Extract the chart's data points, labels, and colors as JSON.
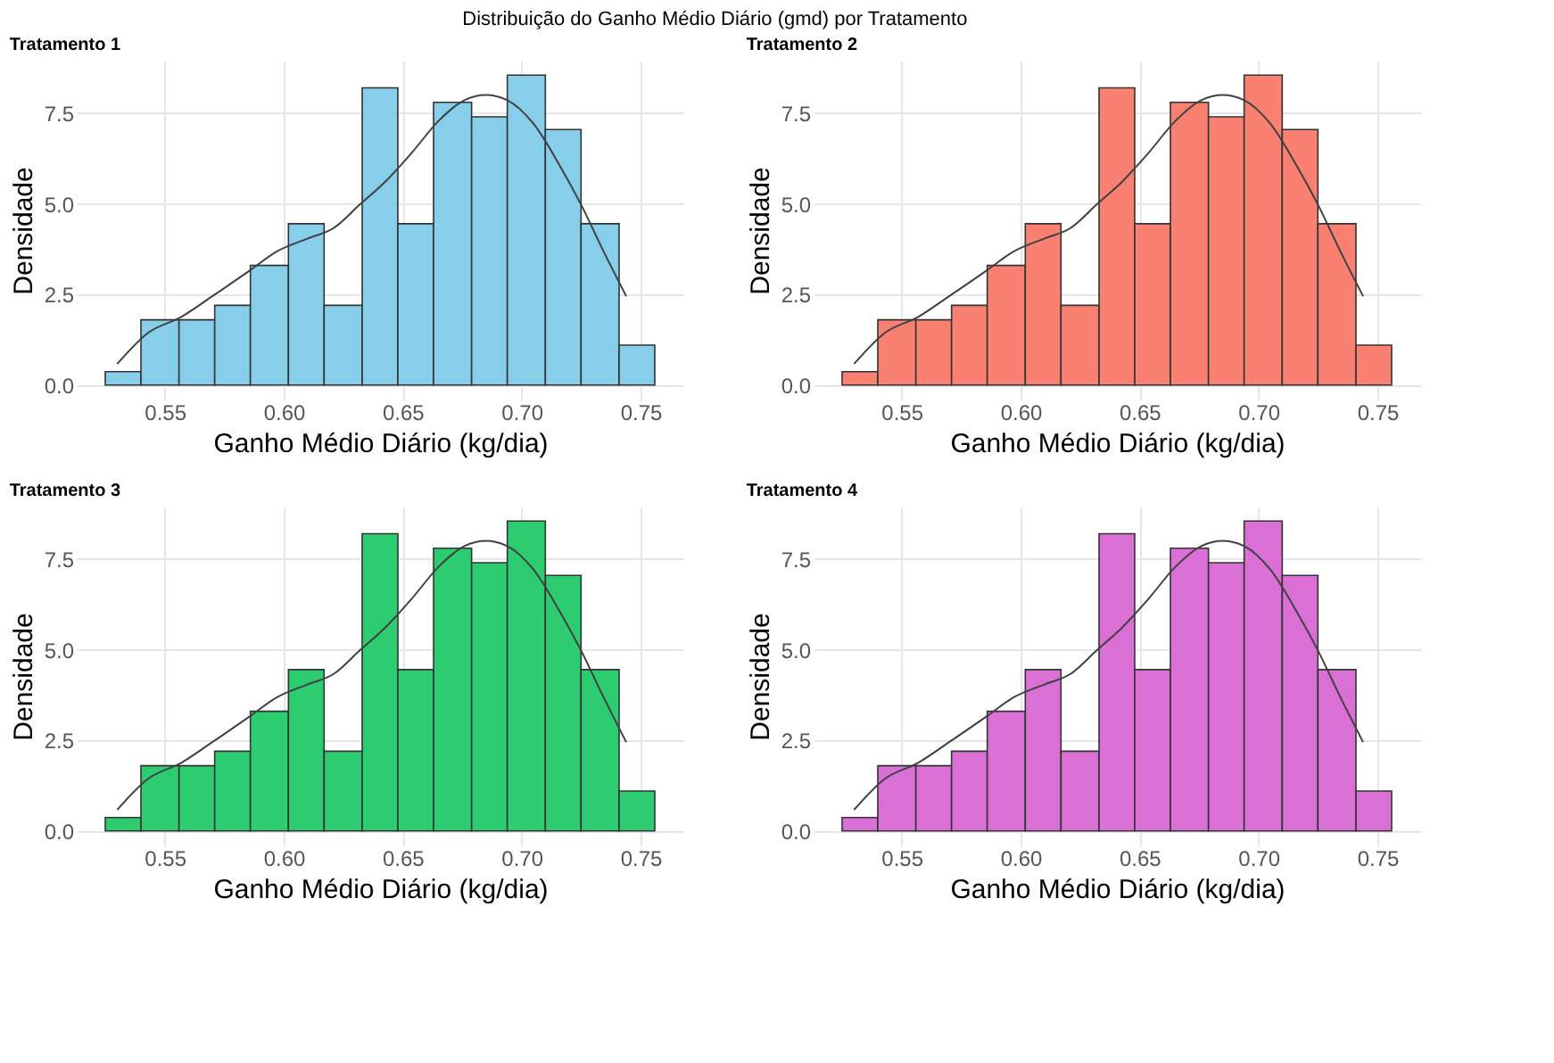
{
  "chart_data": [
    {
      "type": "histogram",
      "title": "Tratamento 1",
      "annotations": [
        "Distribuição do Ganho Médio Diário (gmd) por Tratamento"
      ],
      "xlabel": "Ganho Médio Diário (kg/dia)",
      "ylabel": "Densidade",
      "bins": [
        0.525,
        0.54,
        0.556,
        0.571,
        0.586,
        0.602,
        0.617,
        0.633,
        0.648,
        0.663,
        0.679,
        0.694,
        0.71,
        0.725,
        0.741,
        0.756
      ],
      "xlim": [
        0.513,
        0.768
      ],
      "ylim": [
        -0.4,
        8.95
      ],
      "xticks": [
        {
          "value": 0.55,
          "label": "0.55"
        },
        {
          "value": 0.6,
          "label": "0.60"
        },
        {
          "value": 0.65,
          "label": "0.65"
        },
        {
          "value": 0.7,
          "label": "0.70"
        },
        {
          "value": 0.75,
          "label": "0.75"
        }
      ],
      "yticks": [
        {
          "value": 0,
          "label": "0.0"
        },
        {
          "value": 2.5,
          "label": "2.5"
        },
        {
          "value": 5,
          "label": "5.0"
        },
        {
          "value": 7.5,
          "label": "7.5"
        }
      ],
      "grid": true,
      "series": [
        {
          "color": "#87ceeb",
          "values": [
            0.37,
            1.8,
            1.8,
            2.2,
            3.3,
            4.45,
            2.2,
            8.2,
            4.45,
            7.8,
            7.4,
            8.55,
            7.05,
            4.45,
            1.1
          ]
        },
        {
          "type": "line",
          "color": "#404040",
          "x": [
            0.53,
            0.543,
            0.557,
            0.57,
            0.586,
            0.597,
            0.61,
            0.621,
            0.632,
            0.643,
            0.654,
            0.665,
            0.676,
            0.685,
            0.694,
            0.705,
            0.716,
            0.725,
            0.734,
            0.744
          ],
          "values": [
            0.58,
            1.44,
            1.88,
            2.45,
            3.17,
            3.68,
            4.04,
            4.33,
            4.98,
            5.63,
            6.42,
            7.28,
            7.86,
            8.0,
            7.86,
            7.21,
            6.06,
            4.98,
            3.75,
            2.45
          ]
        }
      ]
    },
    {
      "type": "histogram",
      "title": "Tratamento 2",
      "xlabel": "Ganho Médio Diário (kg/dia)",
      "ylabel": "Densidade",
      "bins": [
        0.525,
        0.54,
        0.556,
        0.571,
        0.586,
        0.602,
        0.617,
        0.633,
        0.648,
        0.663,
        0.679,
        0.694,
        0.71,
        0.725,
        0.741,
        0.756
      ],
      "xlim": [
        0.513,
        0.768
      ],
      "ylim": [
        -0.4,
        8.95
      ],
      "xticks": [
        {
          "value": 0.55,
          "label": "0.55"
        },
        {
          "value": 0.6,
          "label": "0.60"
        },
        {
          "value": 0.65,
          "label": "0.65"
        },
        {
          "value": 0.7,
          "label": "0.70"
        },
        {
          "value": 0.75,
          "label": "0.75"
        }
      ],
      "yticks": [
        {
          "value": 0,
          "label": "0.0"
        },
        {
          "value": 2.5,
          "label": "2.5"
        },
        {
          "value": 5,
          "label": "5.0"
        },
        {
          "value": 7.5,
          "label": "7.5"
        }
      ],
      "grid": true,
      "series": [
        {
          "color": "#fa8072",
          "values": [
            0.37,
            1.8,
            1.8,
            2.2,
            3.3,
            4.45,
            2.2,
            8.2,
            4.45,
            7.8,
            7.4,
            8.55,
            7.05,
            4.45,
            1.1
          ]
        },
        {
          "type": "line",
          "color": "#404040",
          "x": [
            0.53,
            0.543,
            0.557,
            0.57,
            0.586,
            0.597,
            0.61,
            0.621,
            0.632,
            0.643,
            0.654,
            0.665,
            0.676,
            0.685,
            0.694,
            0.705,
            0.716,
            0.725,
            0.734,
            0.744
          ],
          "values": [
            0.58,
            1.44,
            1.88,
            2.45,
            3.17,
            3.68,
            4.04,
            4.33,
            4.98,
            5.63,
            6.42,
            7.28,
            7.86,
            8.0,
            7.86,
            7.21,
            6.06,
            4.98,
            3.75,
            2.45
          ]
        }
      ]
    },
    {
      "type": "histogram",
      "title": "Tratamento 3",
      "xlabel": "Ganho Médio Diário (kg/dia)",
      "ylabel": "Densidade",
      "bins": [
        0.525,
        0.54,
        0.556,
        0.571,
        0.586,
        0.602,
        0.617,
        0.633,
        0.648,
        0.663,
        0.679,
        0.694,
        0.71,
        0.725,
        0.741,
        0.756
      ],
      "xlim": [
        0.513,
        0.768
      ],
      "ylim": [
        -0.4,
        8.95
      ],
      "xticks": [
        {
          "value": 0.55,
          "label": "0.55"
        },
        {
          "value": 0.6,
          "label": "0.60"
        },
        {
          "value": 0.65,
          "label": "0.65"
        },
        {
          "value": 0.7,
          "label": "0.70"
        },
        {
          "value": 0.75,
          "label": "0.75"
        }
      ],
      "yticks": [
        {
          "value": 0,
          "label": "0.0"
        },
        {
          "value": 2.5,
          "label": "2.5"
        },
        {
          "value": 5,
          "label": "5.0"
        },
        {
          "value": 7.5,
          "label": "7.5"
        }
      ],
      "grid": true,
      "series": [
        {
          "color": "#2ecc71",
          "values": [
            0.37,
            1.8,
            1.8,
            2.2,
            3.3,
            4.45,
            2.2,
            8.2,
            4.45,
            7.8,
            7.4,
            8.55,
            7.05,
            4.45,
            1.1
          ]
        },
        {
          "type": "line",
          "color": "#404040",
          "x": [
            0.53,
            0.543,
            0.557,
            0.57,
            0.586,
            0.597,
            0.61,
            0.621,
            0.632,
            0.643,
            0.654,
            0.665,
            0.676,
            0.685,
            0.694,
            0.705,
            0.716,
            0.725,
            0.734,
            0.744
          ],
          "values": [
            0.58,
            1.44,
            1.88,
            2.45,
            3.17,
            3.68,
            4.04,
            4.33,
            4.98,
            5.63,
            6.42,
            7.28,
            7.86,
            8.0,
            7.86,
            7.21,
            6.06,
            4.98,
            3.75,
            2.45
          ]
        }
      ]
    },
    {
      "type": "histogram",
      "title": "Tratamento 4",
      "xlabel": "Ganho Médio Diário (kg/dia)",
      "ylabel": "Densidade",
      "bins": [
        0.525,
        0.54,
        0.556,
        0.571,
        0.586,
        0.602,
        0.617,
        0.633,
        0.648,
        0.663,
        0.679,
        0.694,
        0.71,
        0.725,
        0.741,
        0.756
      ],
      "xlim": [
        0.513,
        0.768
      ],
      "ylim": [
        -0.4,
        8.95
      ],
      "xticks": [
        {
          "value": 0.55,
          "label": "0.55"
        },
        {
          "value": 0.6,
          "label": "0.60"
        },
        {
          "value": 0.65,
          "label": "0.65"
        },
        {
          "value": 0.7,
          "label": "0.70"
        },
        {
          "value": 0.75,
          "label": "0.75"
        }
      ],
      "yticks": [
        {
          "value": 0,
          "label": "0.0"
        },
        {
          "value": 2.5,
          "label": "2.5"
        },
        {
          "value": 5,
          "label": "5.0"
        },
        {
          "value": 7.5,
          "label": "7.5"
        }
      ],
      "grid": true,
      "series": [
        {
          "color": "#da70d6",
          "values": [
            0.37,
            1.8,
            1.8,
            2.2,
            3.3,
            4.45,
            2.2,
            8.2,
            4.45,
            7.8,
            7.4,
            8.55,
            7.05,
            4.45,
            1.1
          ]
        },
        {
          "type": "line",
          "color": "#404040",
          "x": [
            0.53,
            0.543,
            0.557,
            0.57,
            0.586,
            0.597,
            0.61,
            0.621,
            0.632,
            0.643,
            0.654,
            0.665,
            0.676,
            0.685,
            0.694,
            0.705,
            0.716,
            0.725,
            0.734,
            0.744
          ],
          "values": [
            0.58,
            1.44,
            1.88,
            2.45,
            3.17,
            3.68,
            4.04,
            4.33,
            4.98,
            5.63,
            6.42,
            7.28,
            7.86,
            8.0,
            7.86,
            7.21,
            6.06,
            4.98,
            3.75,
            2.45
          ]
        }
      ]
    }
  ]
}
